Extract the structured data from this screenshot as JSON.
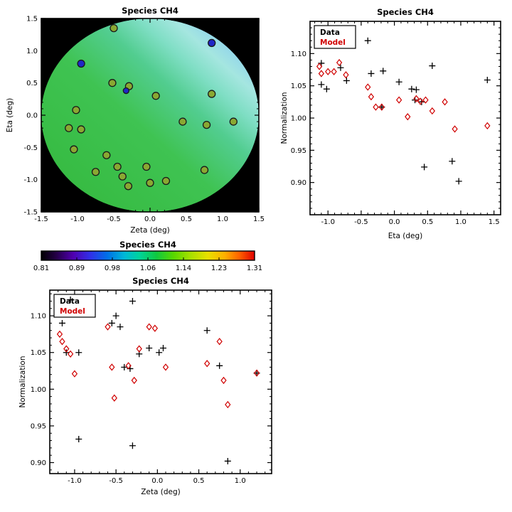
{
  "figure": {
    "background": "#ffffff"
  },
  "chart_data": [
    {
      "id": "map",
      "type": "scatter",
      "title": "Species CH4",
      "xlabel": "Zeta (deg)",
      "ylabel": "Eta (deg)",
      "xlim": [
        -1.5,
        1.5
      ],
      "ylim": [
        -1.5,
        1.5
      ],
      "xticks": [
        "-1.5",
        "-1.0",
        "-0.5",
        "0.0",
        "0.5",
        "1.0",
        "1.5"
      ],
      "yticks": [
        "-1.5",
        "-1.0",
        "-0.5",
        "0.0",
        "0.5",
        "1.0",
        "1.5"
      ],
      "background": "#000000",
      "disk": {
        "center_x": 0,
        "center_y": 0,
        "radius": 1.5,
        "gradient": {
          "direction": "bottomleft-to-topright",
          "stops": [
            [
              "0%",
              "#33b83c"
            ],
            [
              "45%",
              "#3fc352"
            ],
            [
              "62%",
              "#52cd90"
            ],
            [
              "72%",
              "#7fdec4"
            ],
            [
              "80%",
              "#a5e6e0"
            ],
            [
              "88%",
              "#8ed2ee"
            ],
            [
              "100%",
              "#6db2e8"
            ]
          ]
        }
      },
      "marker_colors": {
        "olive": "#8aa832",
        "blue": "#2026c8",
        "outline": "#1a1a1a"
      },
      "points": [
        {
          "x": -0.5,
          "y": 1.35,
          "c": "olive"
        },
        {
          "x": -0.95,
          "y": 0.8,
          "c": "blue"
        },
        {
          "x": 0.85,
          "y": 1.12,
          "c": "blue"
        },
        {
          "x": -0.52,
          "y": 0.5,
          "c": "olive"
        },
        {
          "x": -0.29,
          "y": 0.45,
          "c": "olive"
        },
        {
          "x": -0.33,
          "y": 0.38,
          "c": "blue_small"
        },
        {
          "x": 0.08,
          "y": 0.3,
          "c": "olive"
        },
        {
          "x": 0.85,
          "y": 0.33,
          "c": "olive"
        },
        {
          "x": -1.02,
          "y": 0.08,
          "c": "olive"
        },
        {
          "x": -1.12,
          "y": -0.2,
          "c": "olive"
        },
        {
          "x": -0.95,
          "y": -0.22,
          "c": "olive"
        },
        {
          "x": 0.45,
          "y": -0.1,
          "c": "olive"
        },
        {
          "x": 0.78,
          "y": -0.15,
          "c": "olive"
        },
        {
          "x": 1.15,
          "y": -0.1,
          "c": "olive"
        },
        {
          "x": -1.05,
          "y": -0.53,
          "c": "olive"
        },
        {
          "x": -0.6,
          "y": -0.62,
          "c": "olive"
        },
        {
          "x": -0.45,
          "y": -0.8,
          "c": "olive"
        },
        {
          "x": -0.05,
          "y": -0.8,
          "c": "olive"
        },
        {
          "x": -0.75,
          "y": -0.88,
          "c": "olive"
        },
        {
          "x": -0.38,
          "y": -0.95,
          "c": "olive"
        },
        {
          "x": -0.3,
          "y": -1.1,
          "c": "olive"
        },
        {
          "x": 0.0,
          "y": -1.05,
          "c": "olive"
        },
        {
          "x": 0.22,
          "y": -1.02,
          "c": "olive"
        },
        {
          "x": 0.75,
          "y": -0.85,
          "c": "olive"
        }
      ]
    },
    {
      "id": "colorbar",
      "type": "colorbar",
      "title": "Species CH4",
      "tick_labels": [
        "0.81",
        "0.89",
        "0.98",
        "1.06",
        "1.14",
        "1.23",
        "1.31"
      ],
      "gradient_stops": [
        [
          "0%",
          "#000000"
        ],
        [
          "7%",
          "#240046"
        ],
        [
          "15%",
          "#5000b0"
        ],
        [
          "23%",
          "#3030e8"
        ],
        [
          "31%",
          "#0070e8"
        ],
        [
          "39%",
          "#00b8d8"
        ],
        [
          "46%",
          "#00d49c"
        ],
        [
          "54%",
          "#10c840"
        ],
        [
          "62%",
          "#58d800"
        ],
        [
          "70%",
          "#a8e000"
        ],
        [
          "78%",
          "#e8e000"
        ],
        [
          "86%",
          "#ffb000"
        ],
        [
          "93%",
          "#ff6000"
        ],
        [
          "100%",
          "#e00000"
        ]
      ]
    },
    {
      "id": "eta_scatter",
      "type": "scatter",
      "title": "Species CH4",
      "xlabel": "Eta (deg)",
      "ylabel": "Normalization",
      "xlim": [
        -1.27,
        1.6
      ],
      "ylim": [
        0.85,
        1.15
      ],
      "xticks": [
        "-1.0",
        "-0.5",
        "0.0",
        "0.5",
        "1.0",
        "1.5"
      ],
      "yticks": [
        "0.90",
        "0.95",
        "1.00",
        "1.05",
        "1.10"
      ],
      "legend_position": "top-left",
      "series": [
        {
          "name": "Data",
          "marker": "plus",
          "color": "#000000",
          "points": [
            [
              -1.1,
              1.085
            ],
            [
              -1.1,
              1.052
            ],
            [
              -1.02,
              1.045
            ],
            [
              -0.81,
              1.078
            ],
            [
              -0.72,
              1.058
            ],
            [
              -0.4,
              1.12
            ],
            [
              -0.35,
              1.069
            ],
            [
              -0.17,
              1.073
            ],
            [
              -0.19,
              1.017
            ],
            [
              0.07,
              1.056
            ],
            [
              0.26,
              1.045
            ],
            [
              0.33,
              1.044
            ],
            [
              0.31,
              1.028
            ],
            [
              0.41,
              1.025
            ],
            [
              0.45,
              0.924
            ],
            [
              0.57,
              1.081
            ],
            [
              0.87,
              0.933
            ],
            [
              0.97,
              0.902
            ],
            [
              1.4,
              1.059
            ]
          ]
        },
        {
          "name": "Model",
          "marker": "diamond",
          "color": "#d00000",
          "points": [
            [
              -1.13,
              1.08
            ],
            [
              -1.1,
              1.069
            ],
            [
              -1.0,
              1.072
            ],
            [
              -0.91,
              1.072
            ],
            [
              -0.83,
              1.086
            ],
            [
              -0.73,
              1.067
            ],
            [
              -0.4,
              1.048
            ],
            [
              -0.35,
              1.033
            ],
            [
              -0.28,
              1.017
            ],
            [
              -0.19,
              1.017
            ],
            [
              0.07,
              1.028
            ],
            [
              0.2,
              1.002
            ],
            [
              0.33,
              1.03
            ],
            [
              0.39,
              1.026
            ],
            [
              0.47,
              1.028
            ],
            [
              0.57,
              1.011
            ],
            [
              0.76,
              1.025
            ],
            [
              0.91,
              0.983
            ],
            [
              1.4,
              0.988
            ]
          ]
        }
      ]
    },
    {
      "id": "zeta_scatter",
      "type": "scatter",
      "title": "Species CH4",
      "xlabel": "Zeta (deg)",
      "ylabel": "Normalization",
      "xlim": [
        -1.3,
        1.38
      ],
      "ylim": [
        0.885,
        1.135
      ],
      "xticks": [
        "-1.0",
        "-0.5",
        "0.0",
        "0.5",
        "1.0"
      ],
      "yticks": [
        "0.90",
        "0.95",
        "1.00",
        "1.05",
        "1.10"
      ],
      "legend_position": "top-left",
      "series": [
        {
          "name": "Data",
          "marker": "plus",
          "color": "#000000",
          "points": [
            [
              -1.15,
              1.09
            ],
            [
              -1.1,
              1.05
            ],
            [
              -1.05,
              1.122
            ],
            [
              -0.95,
              1.05
            ],
            [
              -0.95,
              0.932
            ],
            [
              -0.55,
              1.09
            ],
            [
              -0.5,
              1.1
            ],
            [
              -0.45,
              1.085
            ],
            [
              -0.3,
              1.12
            ],
            [
              -0.4,
              1.03
            ],
            [
              -0.33,
              1.028
            ],
            [
              -0.3,
              0.923
            ],
            [
              -0.22,
              1.048
            ],
            [
              -0.1,
              1.056
            ],
            [
              0.02,
              1.05
            ],
            [
              0.07,
              1.056
            ],
            [
              0.6,
              1.08
            ],
            [
              0.75,
              1.032
            ],
            [
              0.85,
              0.902
            ],
            [
              1.2,
              1.022
            ]
          ]
        },
        {
          "name": "Model",
          "marker": "diamond",
          "color": "#d00000",
          "points": [
            [
              -1.18,
              1.075
            ],
            [
              -1.15,
              1.065
            ],
            [
              -1.1,
              1.055
            ],
            [
              -1.05,
              1.048
            ],
            [
              -1.0,
              1.021
            ],
            [
              -0.6,
              1.085
            ],
            [
              -0.55,
              1.03
            ],
            [
              -0.52,
              0.988
            ],
            [
              -0.35,
              1.032
            ],
            [
              -0.28,
              1.012
            ],
            [
              -0.22,
              1.055
            ],
            [
              -0.1,
              1.085
            ],
            [
              -0.03,
              1.083
            ],
            [
              0.1,
              1.03
            ],
            [
              0.6,
              1.035
            ],
            [
              0.75,
              1.065
            ],
            [
              0.8,
              1.012
            ],
            [
              0.85,
              0.979
            ],
            [
              1.2,
              1.022
            ]
          ]
        }
      ]
    }
  ]
}
